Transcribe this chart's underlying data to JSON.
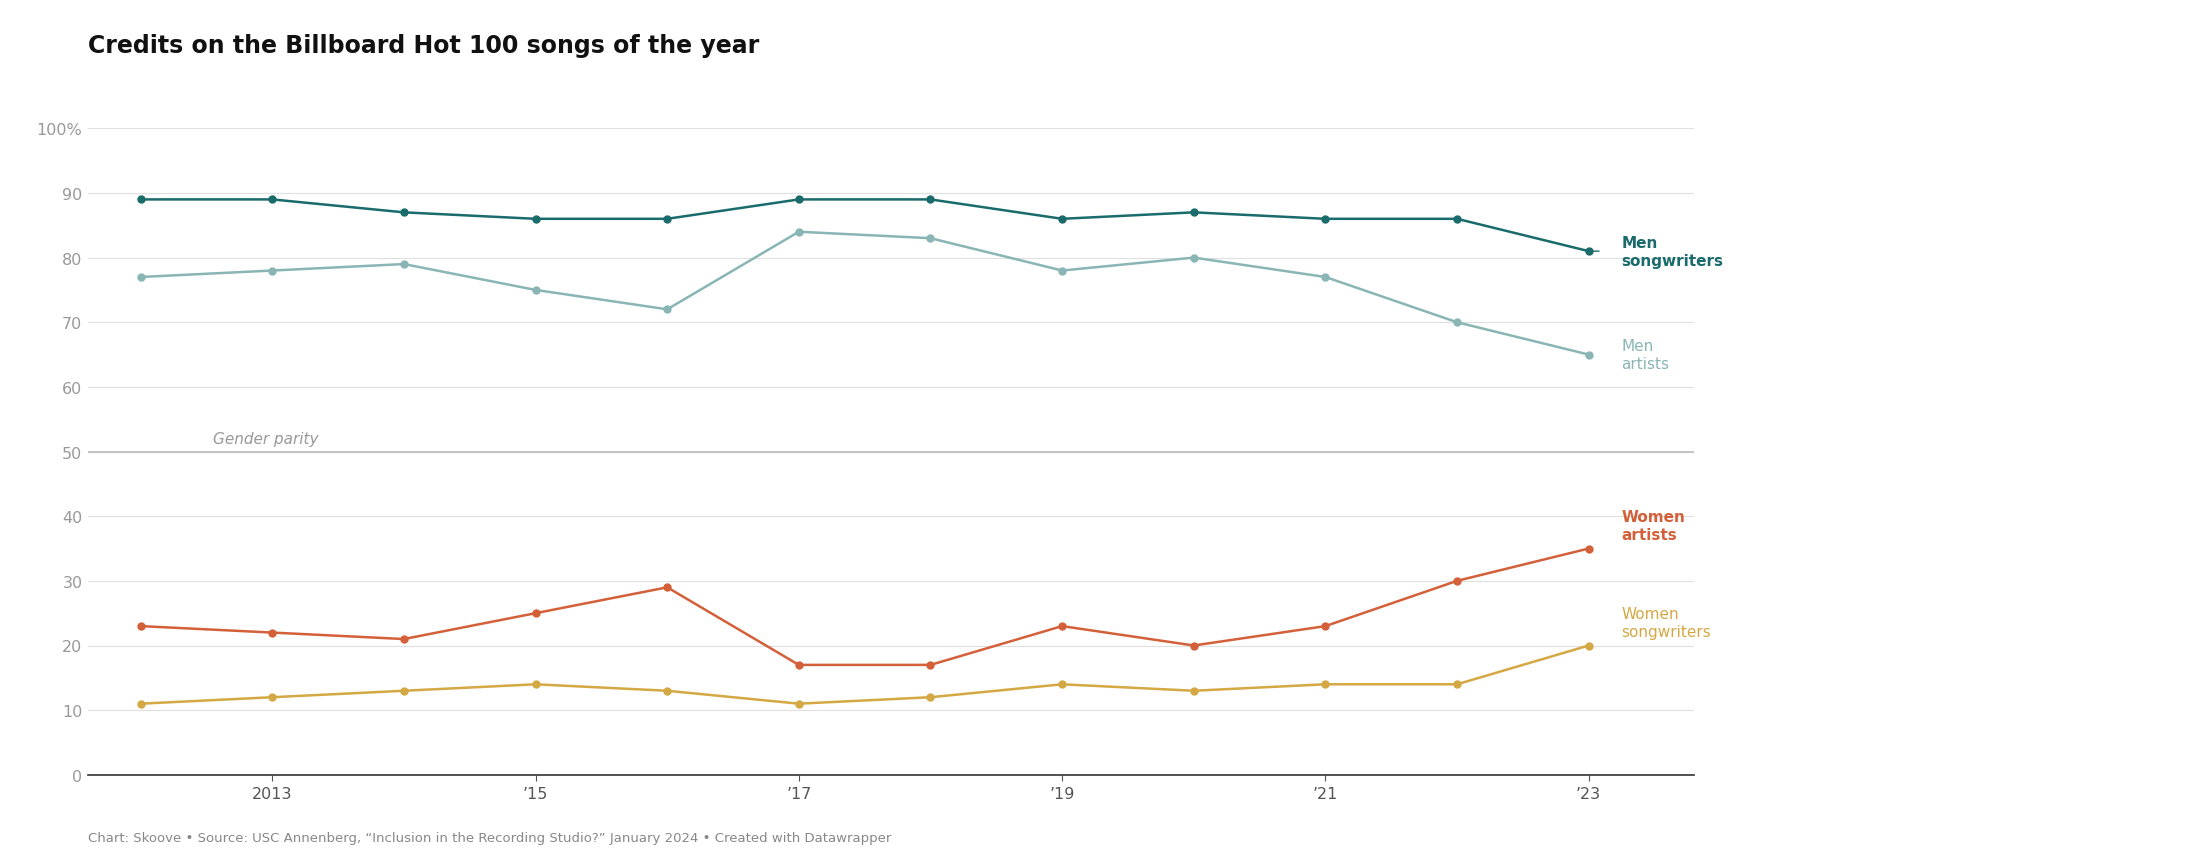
{
  "title": "Credits on the Billboard Hot 100 songs of the year",
  "footnote": "Chart: Skoove • Source: USC Annenberg, “Inclusion in the Recording Studio?” January 2024 • Created with Datawrapper",
  "years": [
    2012,
    2013,
    2014,
    2015,
    2016,
    2017,
    2018,
    2019,
    2020,
    2021,
    2022,
    2023
  ],
  "men_songwriters": [
    89,
    89,
    87,
    86,
    86,
    89,
    89,
    86,
    87,
    86,
    86,
    81
  ],
  "men_artists": [
    77,
    78,
    79,
    75,
    72,
    84,
    83,
    78,
    80,
    77,
    70,
    65
  ],
  "women_artists": [
    23,
    22,
    21,
    25,
    29,
    17,
    17,
    23,
    20,
    23,
    30,
    35
  ],
  "women_songwriters": [
    11,
    12,
    13,
    14,
    13,
    11,
    12,
    14,
    13,
    14,
    14,
    20
  ],
  "gender_parity_y": 50,
  "gender_parity_label": "Gender parity",
  "ylim": [
    0,
    100
  ],
  "yticks": [
    0,
    10,
    20,
    30,
    40,
    50,
    60,
    70,
    80,
    90,
    100
  ],
  "ytick_labels": [
    "0",
    "10",
    "20",
    "30",
    "40",
    "50",
    "60",
    "70",
    "80",
    "90",
    "100%"
  ],
  "xtick_years": [
    2013,
    2015,
    2017,
    2019,
    2021,
    2023
  ],
  "xtick_labels": [
    "2013",
    "’15",
    "’17",
    "’19",
    "’21",
    "’23"
  ],
  "color_men_songwriters": "#1a6b6b",
  "color_men_artists": "#8ab5b5",
  "color_women_artists": "#d4603a",
  "color_women_songwriters": "#d4a843",
  "color_gender_parity": "#bbbbbb",
  "background_color": "#ffffff",
  "grid_color": "#e0e0e0",
  "label_men_songwriters": [
    "Men",
    "songwriters"
  ],
  "label_men_artists": [
    "Men",
    "artists"
  ],
  "label_women_artists": [
    "Women",
    "artists"
  ],
  "label_women_songwriters": [
    "Women",
    "songwriters"
  ]
}
